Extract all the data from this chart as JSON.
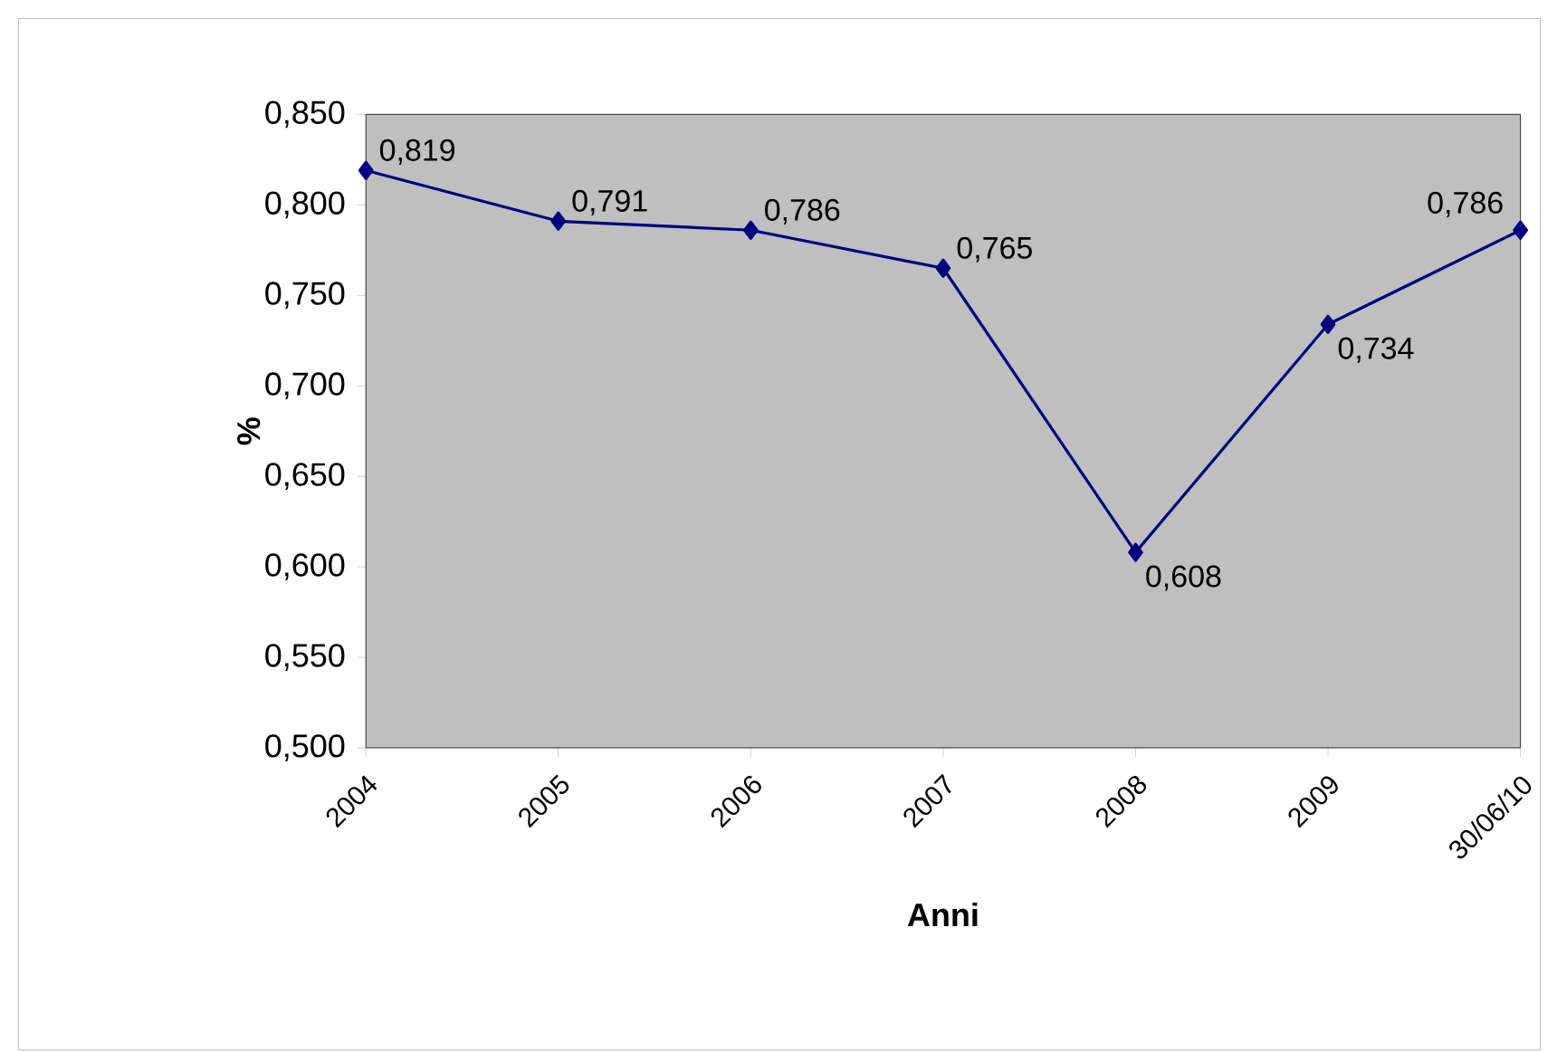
{
  "chart_data": {
    "type": "line",
    "xlabel": "Anni",
    "ylabel": "%",
    "categories": [
      "2004",
      "2005",
      "2006",
      "2007",
      "2008",
      "2009",
      "30/06/10"
    ],
    "series": [
      {
        "color": "#000080",
        "values": [
          0.819,
          0.791,
          0.786,
          0.765,
          0.608,
          0.734,
          0.786
        ],
        "value_labels": [
          "0,819",
          "0,791",
          "0,786",
          "0,765",
          "0,608",
          "0,734",
          "0,786"
        ]
      }
    ],
    "ylim": [
      0.5,
      0.85
    ],
    "yticks": [
      {
        "value": 0.5,
        "label": "0,500"
      },
      {
        "value": 0.55,
        "label": "0,550"
      },
      {
        "value": 0.6,
        "label": "0,600"
      },
      {
        "value": 0.65,
        "label": "0,650"
      },
      {
        "value": 0.7,
        "label": "0,700"
      },
      {
        "value": 0.75,
        "label": "0,750"
      },
      {
        "value": 0.8,
        "label": "0,800"
      },
      {
        "value": 0.85,
        "label": "0,850"
      }
    ],
    "marker": "diamond",
    "line_style": "solid"
  }
}
